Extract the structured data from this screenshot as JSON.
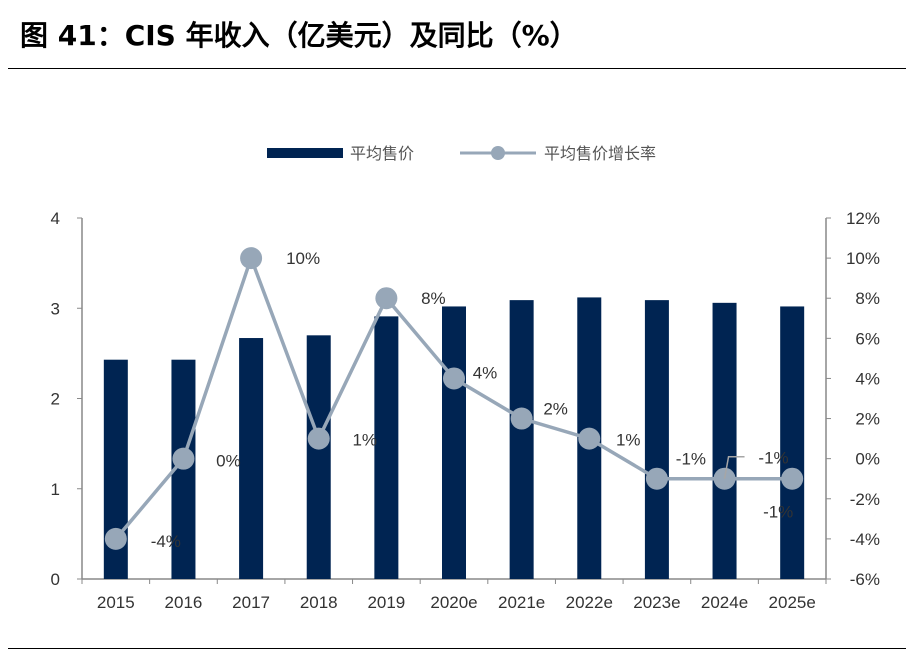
{
  "title": "图 41：CIS 年收入（亿美元）及同比（%）",
  "chart_data": {
    "type": "bar+line",
    "categories": [
      "2015",
      "2016",
      "2017",
      "2018",
      "2019",
      "2020e",
      "2021e",
      "2022e",
      "2023e",
      "2024e",
      "2025e"
    ],
    "series": [
      {
        "name": "平均售价",
        "type": "bar",
        "axis": "left",
        "color": "#002452",
        "values": [
          2.43,
          2.43,
          2.67,
          2.7,
          2.91,
          3.02,
          3.09,
          3.12,
          3.09,
          3.06,
          3.02
        ]
      },
      {
        "name": "平均售价增长率",
        "type": "line",
        "axis": "right",
        "color": "#97A7B8",
        "values": [
          -4,
          0,
          10,
          1,
          8,
          4,
          2,
          1,
          -1,
          -1,
          -1
        ],
        "labels": [
          "-4%",
          "0%",
          "10%",
          "1%",
          "8%",
          "4%",
          "2%",
          "1%",
          "-1%",
          "-1%",
          "-1%"
        ]
      }
    ],
    "yleft": {
      "lim": [
        0,
        4
      ],
      "ticks": [
        "0",
        "1",
        "2",
        "3",
        "4"
      ]
    },
    "yright": {
      "lim": [
        -6,
        12
      ],
      "ticks": [
        "-6%",
        "-4%",
        "-2%",
        "0%",
        "2%",
        "4%",
        "6%",
        "8%",
        "10%",
        "12%"
      ]
    },
    "legend": "top",
    "grid": false
  }
}
